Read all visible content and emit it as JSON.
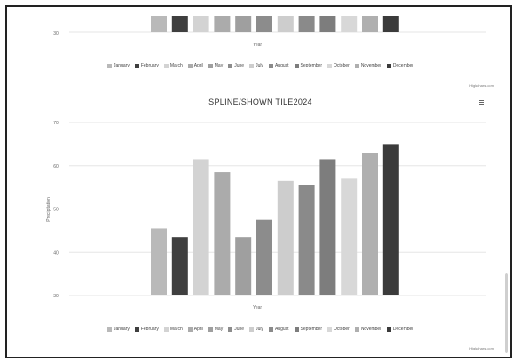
{
  "colors": {
    "months": [
      "#b9b9b9",
      "#3f3f3f",
      "#d3d3d3",
      "#ababab",
      "#9f9f9f",
      "#8c8c8c",
      "#cdcdcd",
      "#8a8a8a",
      "#7d7d7d",
      "#d8d8d8",
      "#afafaf",
      "#3b3b3b"
    ],
    "grid": "#e6e6e6",
    "axis": "#bbbbbb"
  },
  "top_chart": {
    "y_tick_label": "30",
    "x_axis_label": "Year",
    "credit": "Highcharts.com"
  },
  "chart_title": "SPLINE/SHOWN TILE2024",
  "menu_icon": "hamburger-menu-icon",
  "credit": "Highcharts.com",
  "chart_data": [
    {
      "type": "bar",
      "categories": [
        "Year"
      ],
      "ylim": [
        0,
        100
      ],
      "series": [
        {
          "name": "January",
          "values": [
            40
          ]
        },
        {
          "name": "February",
          "values": [
            40
          ]
        },
        {
          "name": "March",
          "values": [
            40
          ]
        },
        {
          "name": "April",
          "values": [
            40
          ]
        },
        {
          "name": "May",
          "values": [
            40
          ]
        },
        {
          "name": "June",
          "values": [
            40
          ]
        },
        {
          "name": "July",
          "values": [
            40
          ]
        },
        {
          "name": "August",
          "values": [
            40
          ]
        },
        {
          "name": "September",
          "values": [
            40
          ]
        },
        {
          "name": "October",
          "values": [
            40
          ]
        },
        {
          "name": "November",
          "values": [
            40
          ]
        },
        {
          "name": "December",
          "values": [
            40
          ]
        }
      ],
      "xlabel": "Year",
      "legend": "bottom-center"
    },
    {
      "type": "bar",
      "title": "SPLINE/SHOWN TILE2024",
      "categories": [
        "Year"
      ],
      "xlabel": "Year",
      "ylabel": "Precipitation",
      "ylim": [
        30,
        65
      ],
      "yticks": [
        "30",
        "40",
        "50",
        "60",
        "70"
      ],
      "grid": true,
      "legend": "bottom-center",
      "series": [
        {
          "name": "January",
          "values": [
            45.5
          ]
        },
        {
          "name": "February",
          "values": [
            43.5
          ]
        },
        {
          "name": "March",
          "values": [
            61.5
          ]
        },
        {
          "name": "April",
          "values": [
            58.5
          ]
        },
        {
          "name": "May",
          "values": [
            43.5
          ]
        },
        {
          "name": "June",
          "values": [
            47.5
          ]
        },
        {
          "name": "July",
          "values": [
            56.5
          ]
        },
        {
          "name": "August",
          "values": [
            55.5
          ]
        },
        {
          "name": "September",
          "values": [
            61.5
          ]
        },
        {
          "name": "October",
          "values": [
            57.0
          ]
        },
        {
          "name": "November",
          "values": [
            63.0
          ]
        },
        {
          "name": "December",
          "values": [
            65.0
          ]
        }
      ]
    }
  ],
  "legend_labels": [
    "January",
    "February",
    "March",
    "April",
    "May",
    "June",
    "July",
    "August",
    "September",
    "October",
    "November",
    "December"
  ]
}
